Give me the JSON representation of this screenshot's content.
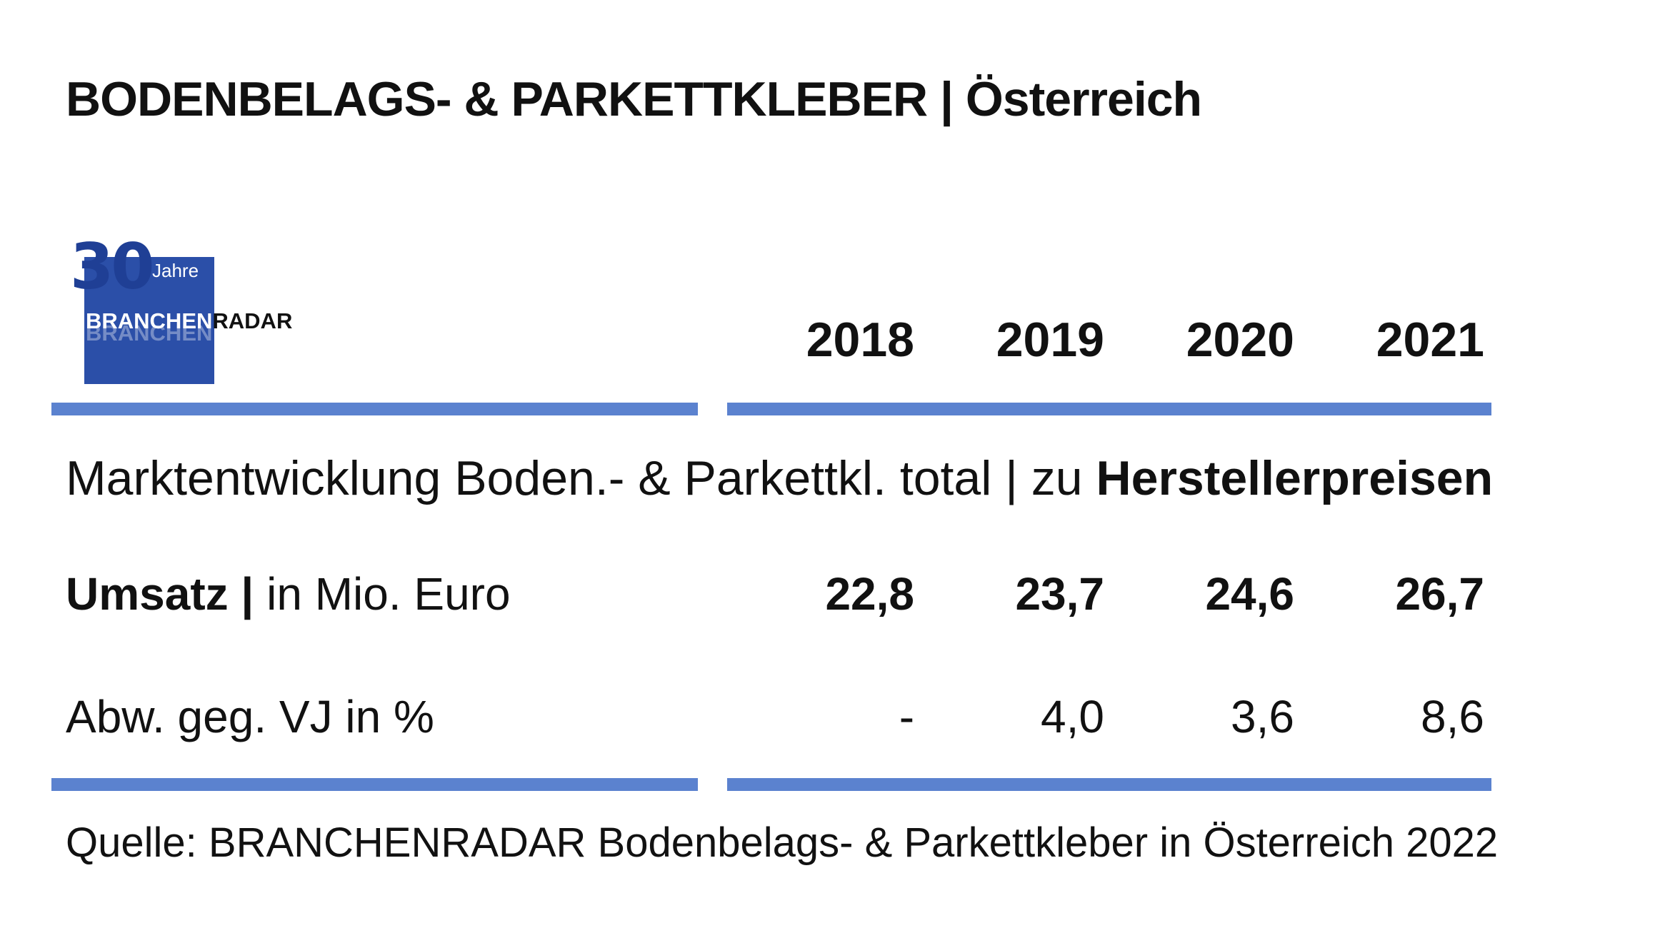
{
  "title": "BODENBELAGS- & PARKETTKLEBER | Österreich",
  "logo": {
    "number": "30",
    "jahre": "Jahre",
    "brand_part1": "BRANCHEN",
    "brand_part2": "RADAR"
  },
  "subtitle": {
    "plain": "Marktentwicklung Boden.- & Parkettkl. total | zu ",
    "bold": "Herstellerpreisen"
  },
  "rows": {
    "umsatz_label_bold": "Umsatz |",
    "umsatz_label_plain": " in Mio. Euro",
    "abw_label": "Abw. geg. VJ in %"
  },
  "source": "Quelle: BRANCHENRADAR Bodenbelags- & Parkettkleber in Österreich 2022",
  "colors": {
    "rule": "#5b82cf",
    "logo_blue": "#2b4fa8"
  },
  "chart_data": {
    "type": "table",
    "title": "BODENBELAGS- & PARKETTKLEBER | Österreich",
    "columns": [
      "2018",
      "2019",
      "2020",
      "2021"
    ],
    "rows": [
      {
        "label": "Umsatz | in Mio. Euro",
        "values": [
          "22,8",
          "23,7",
          "24,6",
          "26,7"
        ]
      },
      {
        "label": "Abw. geg. VJ in %",
        "values": [
          "-",
          "4,0",
          "3,6",
          "8,6"
        ]
      }
    ]
  }
}
